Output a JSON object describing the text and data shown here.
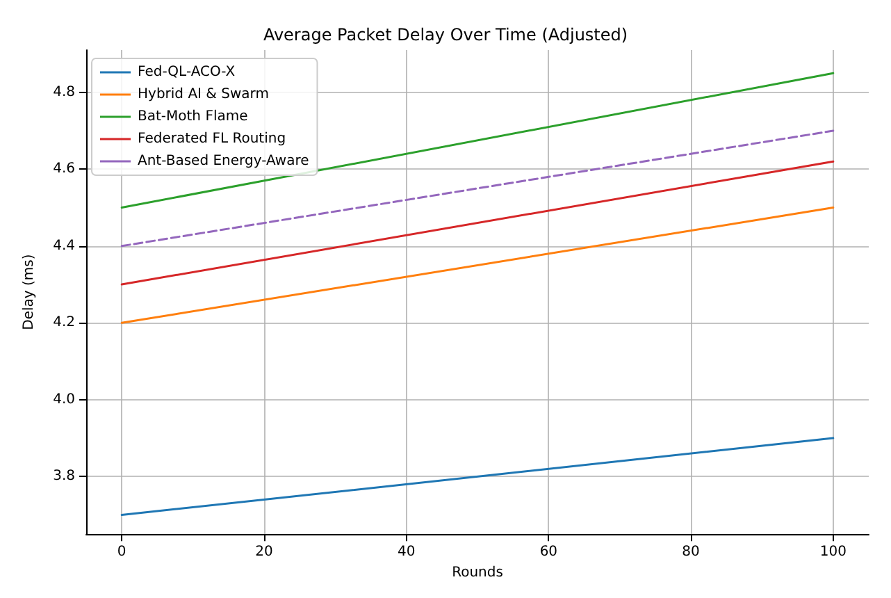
{
  "chart_data": {
    "type": "line",
    "title": "Average Packet Delay Over Time (Adjusted)",
    "xlabel": "Rounds",
    "ylabel": "Delay (ms)",
    "x": [
      0,
      100
    ],
    "series": [
      {
        "name": "Fed-QL-ACO-X",
        "color": "#1f77b4",
        "values": [
          3.7,
          3.9
        ]
      },
      {
        "name": "Hybrid AI & Swarm",
        "color": "#ff7f0e",
        "values": [
          4.2,
          4.5
        ]
      },
      {
        "name": "Bat-Moth Flame",
        "color": "#2ca02c",
        "values": [
          4.5,
          4.85
        ]
      },
      {
        "name": "Federated FL Routing",
        "color": "#d62728",
        "values": [
          4.3,
          4.62
        ]
      },
      {
        "name": "Ant-Based Energy-Aware",
        "color": "#9467bd",
        "values": [
          4.4,
          4.7
        ],
        "line_style": "dashed"
      }
    ],
    "xlim": [
      -5,
      105
    ],
    "xticks": [
      0,
      20,
      40,
      60,
      80,
      100
    ],
    "ylim": [
      3.65,
      4.91
    ],
    "yticks": [
      3.8,
      {
        "value": 4,
        "label": "4.0"
      },
      4.2,
      4.4,
      4.6,
      4.8
    ],
    "grid": true,
    "legend": "top left",
    "marker": "none"
  }
}
